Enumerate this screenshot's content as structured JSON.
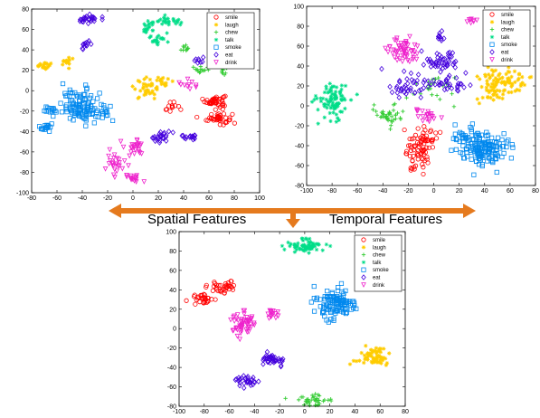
{
  "labels": {
    "spatial": "Spatial Features",
    "temporal": "Temporal Features"
  },
  "arrow_color": "#E57A1E",
  "chart_data": [
    {
      "type": "scatter",
      "title": "",
      "xlabel": "",
      "ylabel": "",
      "xlim": [
        -80,
        100
      ],
      "ylim": [
        -100,
        80
      ],
      "xticks": [
        -80,
        -60,
        -40,
        -20,
        0,
        20,
        40,
        60,
        80,
        100
      ],
      "yticks": [
        -100,
        -80,
        -60,
        -40,
        -20,
        0,
        20,
        40,
        60,
        80
      ],
      "grid": false,
      "legend": "top-right",
      "series": [
        {
          "name": "smile",
          "color": "#FF0000",
          "marker": "circle",
          "clusters": [
            {
              "x": 65,
              "y": -10,
              "sx": 4,
              "sy": 3,
              "n": 45
            },
            {
              "x": 68,
              "y": -27,
              "sx": 5,
              "sy": 3,
              "n": 40
            },
            {
              "x": 30,
              "y": -16,
              "sx": 3,
              "sy": 3,
              "n": 12
            }
          ]
        },
        {
          "name": "laugh",
          "color": "#FFCC00",
          "marker": "star",
          "clusters": [
            {
              "x": -70,
              "y": 25,
              "sx": 3,
              "sy": 2,
              "n": 20
            },
            {
              "x": -52,
              "y": 28,
              "sx": 3,
              "sy": 2,
              "n": 15
            },
            {
              "x": 10,
              "y": 2,
              "sx": 5,
              "sy": 5,
              "n": 35
            },
            {
              "x": 25,
              "y": 10,
              "sx": 3,
              "sy": 2,
              "n": 15
            }
          ]
        },
        {
          "name": "chew",
          "color": "#33CC33",
          "marker": "plus",
          "clusters": [
            {
              "x": 42,
              "y": 40,
              "sx": 2,
              "sy": 2,
              "n": 10
            },
            {
              "x": 55,
              "y": 20,
              "sx": 4,
              "sy": 2,
              "n": 15
            },
            {
              "x": 72,
              "y": 20,
              "sx": 3,
              "sy": 2,
              "n": 10
            }
          ]
        },
        {
          "name": "talk",
          "color": "#00DD88",
          "marker": "asterisk",
          "clusters": [
            {
              "x": 12,
              "y": 62,
              "sx": 3,
              "sy": 3,
              "n": 20
            },
            {
              "x": 28,
              "y": 68,
              "sx": 5,
              "sy": 2,
              "n": 25
            },
            {
              "x": 20,
              "y": 50,
              "sx": 4,
              "sy": 3,
              "n": 20
            }
          ]
        },
        {
          "name": "smoke",
          "color": "#0088EE",
          "marker": "square",
          "clusters": [
            {
              "x": -40,
              "y": -15,
              "sx": 8,
              "sy": 8,
              "n": 110
            },
            {
              "x": -65,
              "y": -20,
              "sx": 3,
              "sy": 2,
              "n": 15
            },
            {
              "x": -68,
              "y": -36,
              "sx": 3,
              "sy": 2,
              "n": 15
            },
            {
              "x": -22,
              "y": -22,
              "sx": 2,
              "sy": 2,
              "n": 8
            }
          ]
        },
        {
          "name": "eat",
          "color": "#4400DD",
          "marker": "diamond",
          "clusters": [
            {
              "x": -35,
              "y": 70,
              "sx": 4,
              "sy": 2,
              "n": 25
            },
            {
              "x": -38,
              "y": 45,
              "sx": 2,
              "sy": 4,
              "n": 12
            },
            {
              "x": 22,
              "y": -45,
              "sx": 5,
              "sy": 3,
              "n": 25
            },
            {
              "x": 45,
              "y": -45,
              "sx": 3,
              "sy": 2,
              "n": 15
            },
            {
              "x": 52,
              "y": 30,
              "sx": 2,
              "sy": 2,
              "n": 8
            }
          ]
        },
        {
          "name": "drink",
          "color": "#EE22CC",
          "marker": "triangle",
          "clusters": [
            {
              "x": 2,
              "y": -55,
              "sx": 4,
              "sy": 4,
              "n": 25
            },
            {
              "x": -15,
              "y": -70,
              "sx": 5,
              "sy": 6,
              "n": 25
            },
            {
              "x": 0,
              "y": -85,
              "sx": 3,
              "sy": 2,
              "n": 15
            },
            {
              "x": 45,
              "y": 5,
              "sx": 4,
              "sy": 3,
              "n": 10
            }
          ]
        }
      ]
    },
    {
      "type": "scatter",
      "title": "",
      "xlabel": "",
      "ylabel": "",
      "xlim": [
        -100,
        80
      ],
      "ylim": [
        -80,
        100
      ],
      "xticks": [
        -100,
        -80,
        -60,
        -40,
        -20,
        0,
        20,
        40,
        60,
        80
      ],
      "yticks": [
        -80,
        -60,
        -40,
        -20,
        0,
        20,
        40,
        60,
        80,
        100
      ],
      "grid": false,
      "legend": "top-right",
      "series": [
        {
          "name": "smile",
          "color": "#FF0000",
          "marker": "circle",
          "clusters": [
            {
              "x": -12,
              "y": -50,
              "sx": 5,
              "sy": 9,
              "n": 60
            },
            {
              "x": -5,
              "y": -30,
              "sx": 5,
              "sy": 4,
              "n": 25
            }
          ]
        },
        {
          "name": "laugh",
          "color": "#FFCC00",
          "marker": "star",
          "clusters": [
            {
              "x": 55,
              "y": 25,
              "sx": 9,
              "sy": 6,
              "n": 80
            },
            {
              "x": 45,
              "y": 10,
              "sx": 6,
              "sy": 4,
              "n": 20
            }
          ]
        },
        {
          "name": "chew",
          "color": "#33CC33",
          "marker": "plus",
          "clusters": [
            {
              "x": -35,
              "y": -10,
              "sx": 6,
              "sy": 6,
              "n": 40
            },
            {
              "x": 0,
              "y": 20,
              "sx": 10,
              "sy": 8,
              "n": 25
            }
          ]
        },
        {
          "name": "talk",
          "color": "#00DD88",
          "marker": "asterisk",
          "clusters": [
            {
              "x": -80,
              "y": 5,
              "sx": 6,
              "sy": 8,
              "n": 90
            }
          ]
        },
        {
          "name": "smoke",
          "color": "#0088EE",
          "marker": "square",
          "clusters": [
            {
              "x": 40,
              "y": -45,
              "sx": 9,
              "sy": 9,
              "n": 140
            },
            {
              "x": 25,
              "y": -30,
              "sx": 6,
              "sy": 5,
              "n": 25
            }
          ]
        },
        {
          "name": "eat",
          "color": "#4400DD",
          "marker": "diamond",
          "clusters": [
            {
              "x": 5,
              "y": 45,
              "sx": 7,
              "sy": 5,
              "n": 45
            },
            {
              "x": -20,
              "y": 20,
              "sx": 8,
              "sy": 6,
              "n": 40
            },
            {
              "x": 5,
              "y": 70,
              "sx": 2,
              "sy": 3,
              "n": 10
            },
            {
              "x": 15,
              "y": 20,
              "sx": 8,
              "sy": 6,
              "n": 30
            }
          ]
        },
        {
          "name": "drink",
          "color": "#EE22CC",
          "marker": "triangle",
          "clusters": [
            {
              "x": -25,
              "y": 55,
              "sx": 7,
              "sy": 6,
              "n": 55
            },
            {
              "x": 30,
              "y": 85,
              "sx": 2,
              "sy": 2,
              "n": 8
            },
            {
              "x": -5,
              "y": -10,
              "sx": 6,
              "sy": 5,
              "n": 20
            }
          ]
        }
      ]
    },
    {
      "type": "scatter",
      "title": "",
      "xlabel": "",
      "ylabel": "",
      "xlim": [
        -100,
        80
      ],
      "ylim": [
        -80,
        100
      ],
      "xticks": [
        -100,
        -80,
        -60,
        -40,
        -20,
        0,
        20,
        40,
        60,
        80
      ],
      "yticks": [
        -80,
        -60,
        -40,
        -20,
        0,
        20,
        40,
        60,
        80,
        100
      ],
      "grid": false,
      "legend": "top-right",
      "series": [
        {
          "name": "smile",
          "color": "#FF0000",
          "marker": "circle",
          "clusters": [
            {
              "x": -80,
              "y": 30,
              "sx": 4,
              "sy": 3,
              "n": 30
            },
            {
              "x": -65,
              "y": 42,
              "sx": 5,
              "sy": 3,
              "n": 35
            }
          ]
        },
        {
          "name": "laugh",
          "color": "#FFCC00",
          "marker": "star",
          "clusters": [
            {
              "x": 55,
              "y": -30,
              "sx": 7,
              "sy": 5,
              "n": 70
            }
          ]
        },
        {
          "name": "chew",
          "color": "#33CC33",
          "marker": "plus",
          "clusters": [
            {
              "x": 5,
              "y": -75,
              "sx": 6,
              "sy": 4,
              "n": 40
            }
          ]
        },
        {
          "name": "talk",
          "color": "#00DD88",
          "marker": "asterisk",
          "clusters": [
            {
              "x": 0,
              "y": 85,
              "sx": 7,
              "sy": 4,
              "n": 70
            }
          ]
        },
        {
          "name": "smoke",
          "color": "#0088EE",
          "marker": "square",
          "clusters": [
            {
              "x": 25,
              "y": 25,
              "sx": 8,
              "sy": 8,
              "n": 110
            }
          ]
        },
        {
          "name": "eat",
          "color": "#4400DD",
          "marker": "diamond",
          "clusters": [
            {
              "x": -25,
              "y": -32,
              "sx": 5,
              "sy": 3,
              "n": 40
            },
            {
              "x": -45,
              "y": -53,
              "sx": 4,
              "sy": 3,
              "n": 30
            }
          ]
        },
        {
          "name": "drink",
          "color": "#EE22CC",
          "marker": "triangle",
          "clusters": [
            {
              "x": -50,
              "y": 5,
              "sx": 5,
              "sy": 7,
              "n": 55
            },
            {
              "x": -25,
              "y": 15,
              "sx": 3,
              "sy": 3,
              "n": 15
            }
          ]
        }
      ]
    }
  ]
}
